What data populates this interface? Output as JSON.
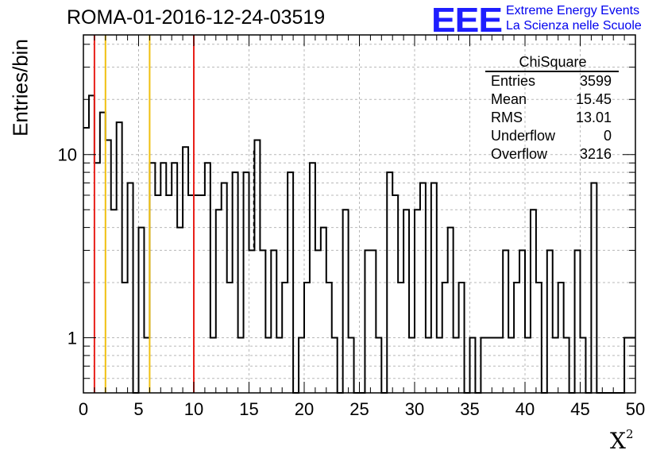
{
  "header": {
    "run_title": "ROMA-01-2016-12-24-03519",
    "logo_text": "EEE",
    "logo_line1": "Extreme Energy Events",
    "logo_line2": "La Scienza nelle Scuole"
  },
  "stats_box": {
    "title": "ChiSquare",
    "rows": [
      {
        "key": "Entries",
        "value": "3599"
      },
      {
        "key": "Mean",
        "value": "15.45"
      },
      {
        "key": "RMS",
        "value": "13.01"
      },
      {
        "key": "Underflow",
        "value": "0"
      },
      {
        "key": "Overflow",
        "value": "3216"
      }
    ]
  },
  "colors": {
    "histogram": "#000000",
    "red_markers": "#e8201a",
    "yellow_markers": "#f0c010",
    "grid": "#b8b8b8",
    "logo_blue": "#1e1eff"
  },
  "chart_data": {
    "type": "histogram",
    "title": "ROMA-01-2016-12-24-03519",
    "xlabel": "X²",
    "ylabel": "Entries/bin",
    "xlim": [
      0,
      50
    ],
    "ylim": [
      0.5,
      45
    ],
    "yscale": "log",
    "grid": true,
    "bin_width": 0.5,
    "x_ticks": [
      0,
      5,
      10,
      15,
      20,
      25,
      30,
      35,
      40,
      45,
      50
    ],
    "x_tick_labels": [
      "0",
      "5",
      "10",
      "15",
      "20",
      "25",
      "30",
      "35",
      "40",
      "45",
      "50"
    ],
    "y_ticks": [
      1,
      10
    ],
    "y_tick_labels": [
      "1",
      "10"
    ],
    "bin_counts": [
      14,
      21,
      9,
      17,
      12,
      5,
      15,
      2,
      7,
      0,
      4,
      1,
      9,
      6,
      9,
      6,
      9,
      4,
      11,
      6,
      6,
      6,
      9,
      1,
      5,
      7,
      2,
      8,
      1,
      8,
      3,
      12,
      3,
      1,
      3,
      1,
      2,
      8,
      0,
      1,
      2,
      9,
      3,
      4,
      2,
      1,
      0,
      5,
      1,
      0,
      0,
      3,
      3,
      1,
      0,
      8,
      6,
      2,
      5,
      1,
      5,
      7,
      1,
      7,
      1,
      2,
      4,
      1,
      2,
      0,
      1,
      0,
      1,
      1,
      1,
      1,
      3,
      1,
      2,
      3,
      1,
      5,
      2,
      0,
      3,
      1,
      2,
      1,
      0,
      3,
      1,
      0,
      7,
      0,
      0,
      0,
      0,
      0,
      1,
      1
    ],
    "markers": [
      {
        "x": 1,
        "color": "red"
      },
      {
        "x": 2,
        "color": "yellow"
      },
      {
        "x": 6,
        "color": "yellow"
      },
      {
        "x": 10,
        "color": "red"
      },
      {
        "x": 15.45,
        "color": "black",
        "style": "dashed"
      }
    ]
  }
}
